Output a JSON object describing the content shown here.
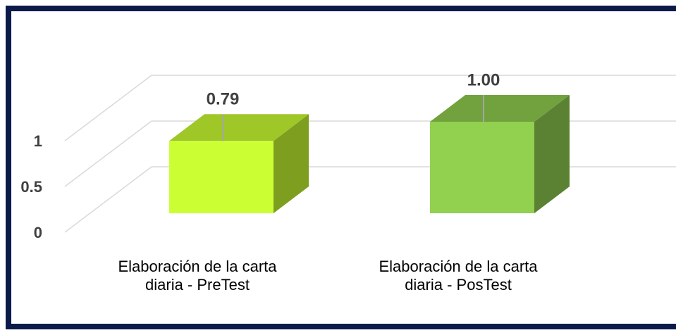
{
  "chart_data": {
    "type": "bar3d",
    "categories": [
      "Elaboración de la carta diaria - PreTest",
      "Elaboración de la carta diaria - PosTest"
    ],
    "category_lines": [
      [
        "Elaboración de la carta",
        "diaria - PreTest"
      ],
      [
        "Elaboración de la carta",
        "diaria - PosTest"
      ]
    ],
    "values": [
      0.79,
      1.0
    ],
    "value_labels": [
      "0.79",
      "1.00"
    ],
    "colors": [
      "#ccff33",
      "#92d050"
    ],
    "ylim": [
      0,
      1
    ],
    "yticks": [
      0,
      0.5,
      1
    ],
    "grid": true
  }
}
